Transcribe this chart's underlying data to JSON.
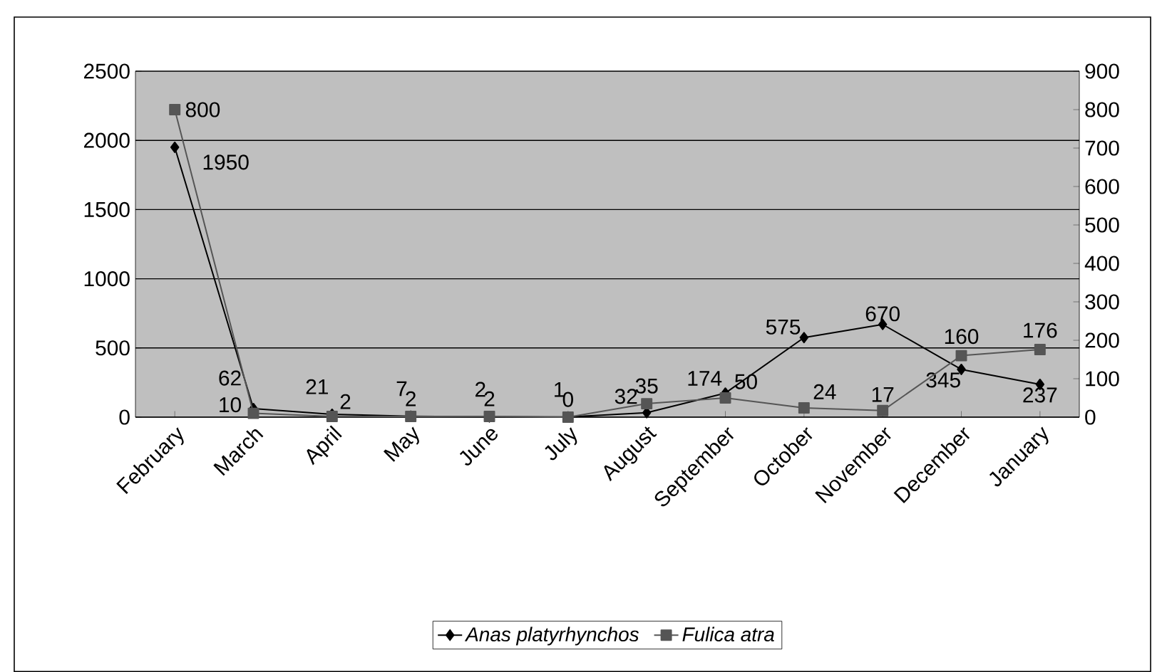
{
  "chart_data": {
    "type": "line",
    "categories": [
      "February",
      "March",
      "April",
      "May",
      "June",
      "July",
      "August",
      "September",
      "October",
      "November",
      "December",
      "January"
    ],
    "series": [
      {
        "name": "Anas platyrhynchos",
        "color": "#000000",
        "marker": "diamond",
        "values": [
          1950,
          62,
          21,
          7,
          2,
          1,
          32,
          174,
          575,
          670,
          345,
          237
        ]
      },
      {
        "name": "Fulica atra",
        "color": "#555555",
        "marker": "square",
        "axis": "y2",
        "values": [
          800,
          10,
          2,
          2,
          2,
          0,
          35,
          50,
          24,
          17,
          160,
          176
        ]
      }
    ],
    "ylim": [
      0,
      2500
    ],
    "yticks": [
      0,
      500,
      1000,
      1500,
      2000,
      2500
    ],
    "y2lim": [
      0,
      900
    ],
    "y2ticks": [
      0,
      100,
      200,
      300,
      400,
      500,
      600,
      700,
      800,
      900
    ],
    "grid": "y",
    "legend": "bottom",
    "data_labels": true
  }
}
